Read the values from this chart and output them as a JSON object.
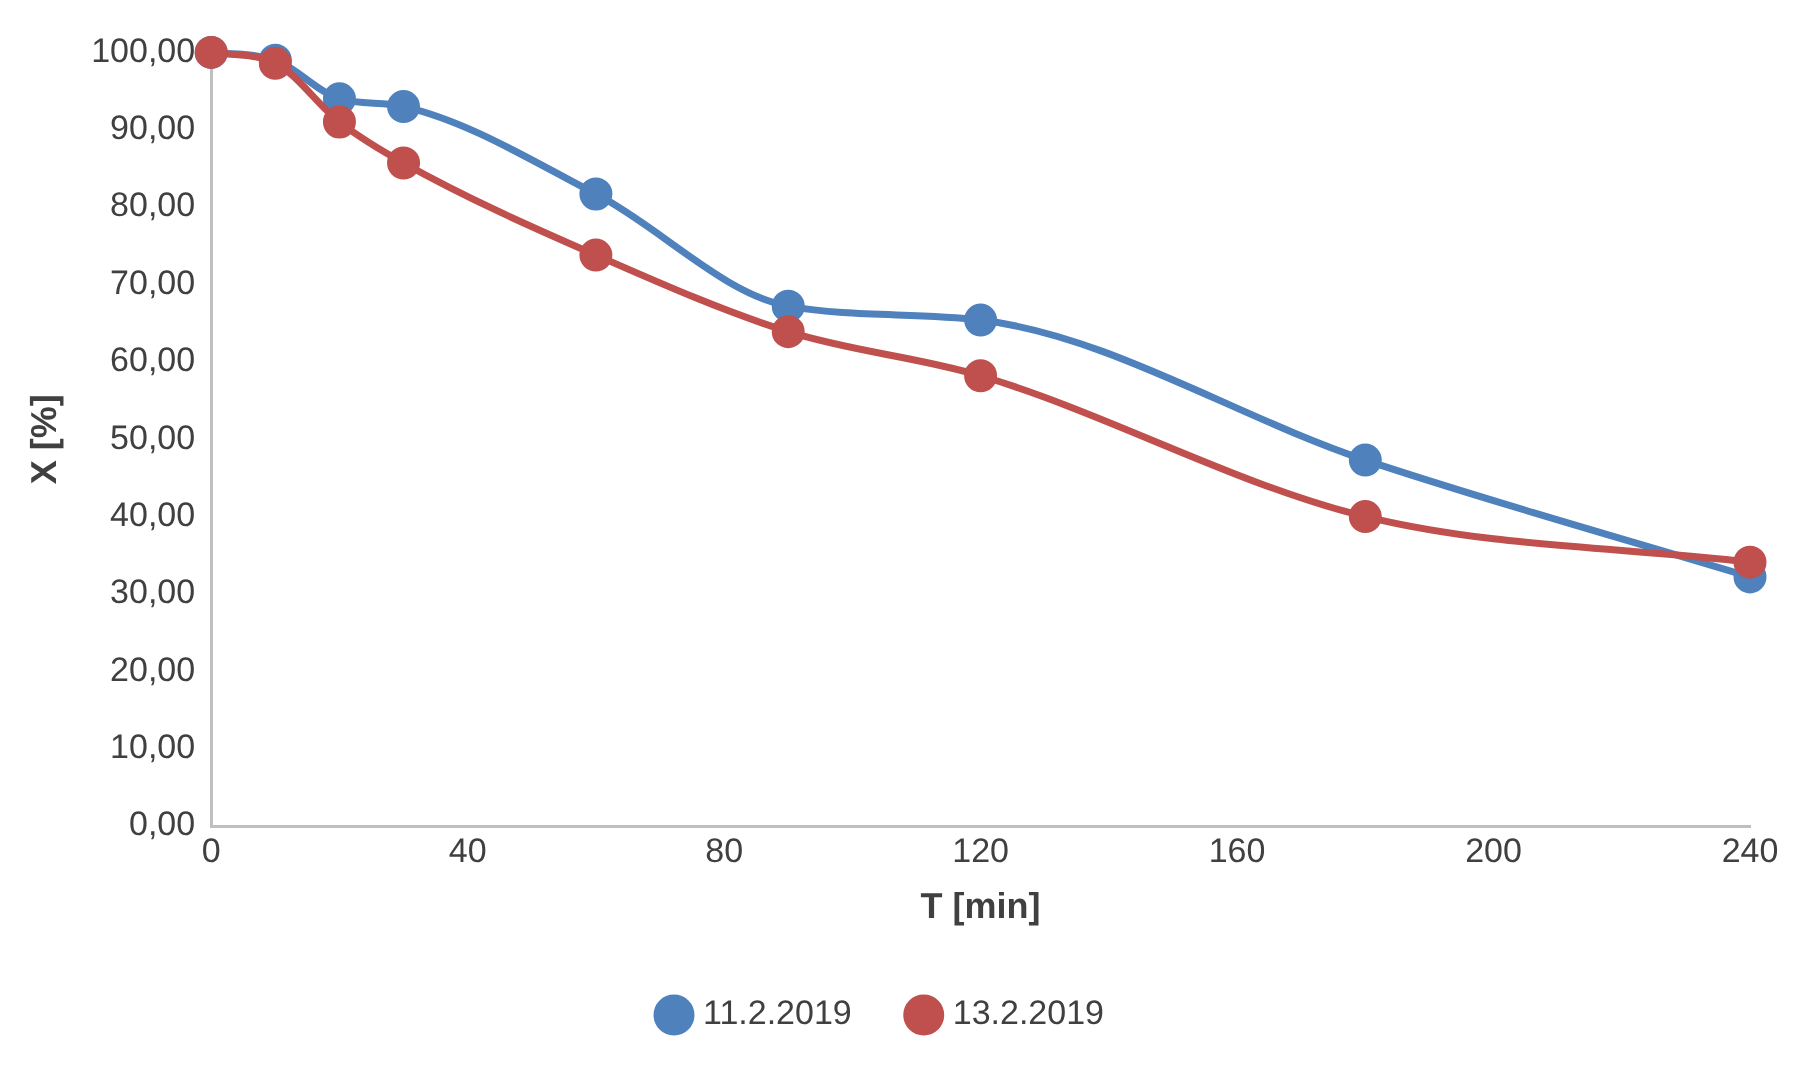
{
  "chart_data": {
    "type": "line",
    "xlabel": "T [min]",
    "ylabel": "X [%]",
    "xlim": [
      0,
      240
    ],
    "xticks": [
      0,
      40,
      80,
      120,
      160,
      200,
      240
    ],
    "ylim": [
      0,
      100
    ],
    "yticks": [
      {
        "value": 0,
        "label": "0,00"
      },
      {
        "value": 10,
        "label": "10,00"
      },
      {
        "value": 20,
        "label": "20,00"
      },
      {
        "value": 30,
        "label": "30,00"
      },
      {
        "value": 40,
        "label": "40,00"
      },
      {
        "value": 50,
        "label": "50,00"
      },
      {
        "value": 60,
        "label": "60,00"
      },
      {
        "value": 70,
        "label": "70,00"
      },
      {
        "value": 80,
        "label": "80,00"
      },
      {
        "value": 90,
        "label": "90,00"
      },
      {
        "value": 100,
        "label": "100,00"
      }
    ],
    "grid": false,
    "legend": "bottom",
    "marker": "circle",
    "line_style": "solid",
    "x": [
      0,
      10,
      20,
      30,
      60,
      90,
      120,
      180,
      240
    ],
    "series": [
      {
        "name": "11.2.2019",
        "color": "#4f81bd",
        "values": [
          100,
          99,
          94,
          93,
          81.7,
          67.2,
          65.4,
          47.3,
          32.2
        ]
      },
      {
        "name": "13.2.2019",
        "color": "#c0504d",
        "values": [
          100,
          98.6,
          91,
          85.7,
          73.8,
          63.9,
          58.2,
          40,
          34.1
        ]
      }
    ]
  }
}
